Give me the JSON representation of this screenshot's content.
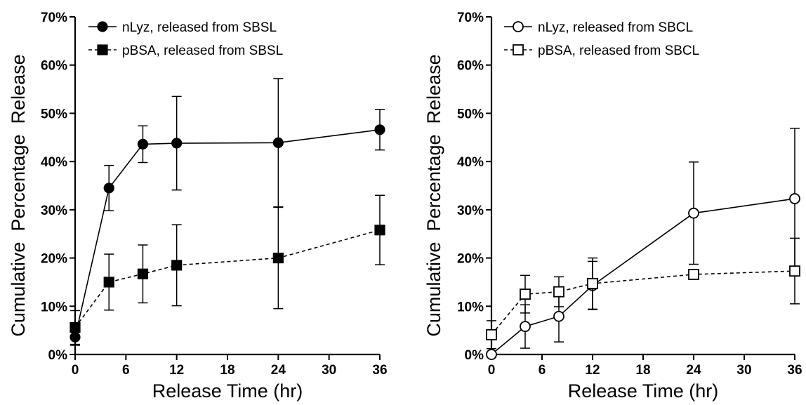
{
  "chart_data": [
    {
      "type": "line",
      "xlabel": "Release Time (hr)",
      "ylabel": "Cumulative  Percentage  Release",
      "xlim": [
        0,
        36
      ],
      "ylim": [
        0,
        70
      ],
      "xticks": [
        "0",
        "6",
        "12",
        "18",
        "24",
        "30",
        "36"
      ],
      "yticks": [
        "0%",
        "10%",
        "20%",
        "30%",
        "40%",
        "50%",
        "60%",
        "70%"
      ],
      "grid": false,
      "legend_position": "top-left",
      "series": [
        {
          "name": "nLyz, released from SBSL",
          "marker": "filled-circle",
          "line_style": "solid",
          "x": [
            0,
            4,
            8,
            12,
            24,
            36
          ],
          "y": [
            3.6,
            34.5,
            43.6,
            43.8,
            43.9,
            46.6
          ],
          "error": [
            1.7,
            4.7,
            3.8,
            9.7,
            13.3,
            4.2
          ]
        },
        {
          "name": "pBSA, released from SBSL",
          "marker": "filled-square",
          "line_style": "dashed",
          "x": [
            0,
            4,
            8,
            12,
            24,
            36
          ],
          "y": [
            5.6,
            15.0,
            16.7,
            18.5,
            20.0,
            25.8
          ],
          "error": [
            3.5,
            5.8,
            6.0,
            8.4,
            10.5,
            7.2
          ]
        }
      ]
    },
    {
      "type": "line",
      "xlabel": "Release Time (hr)",
      "ylabel": "Cumulative  Percentage  Release",
      "xlim": [
        0,
        36
      ],
      "ylim": [
        0,
        70
      ],
      "xticks": [
        "0",
        "6",
        "12",
        "18",
        "24",
        "30",
        "36"
      ],
      "yticks": [
        "0%",
        "10%",
        "20%",
        "30%",
        "40%",
        "50%",
        "60%",
        "70%"
      ],
      "grid": false,
      "legend_position": "top-left",
      "series": [
        {
          "name": "nLyz, released from SBCL",
          "marker": "open-circle",
          "line_style": "solid",
          "x": [
            0,
            4,
            8,
            12,
            24,
            36
          ],
          "y": [
            0,
            5.8,
            7.9,
            14.3,
            29.3,
            32.3
          ],
          "error": [
            0,
            4.5,
            5.3,
            5.0,
            10.6,
            14.6
          ]
        },
        {
          "name": "pBSA, released from SBCL",
          "marker": "open-square",
          "line_style": "dashed",
          "x": [
            0,
            4,
            8,
            12,
            24,
            36
          ],
          "y": [
            4.1,
            12.5,
            13.0,
            14.7,
            16.6,
            17.3
          ],
          "error": [
            2.9,
            3.9,
            3.1,
            5.3,
            0.8,
            6.8
          ]
        }
      ]
    }
  ]
}
